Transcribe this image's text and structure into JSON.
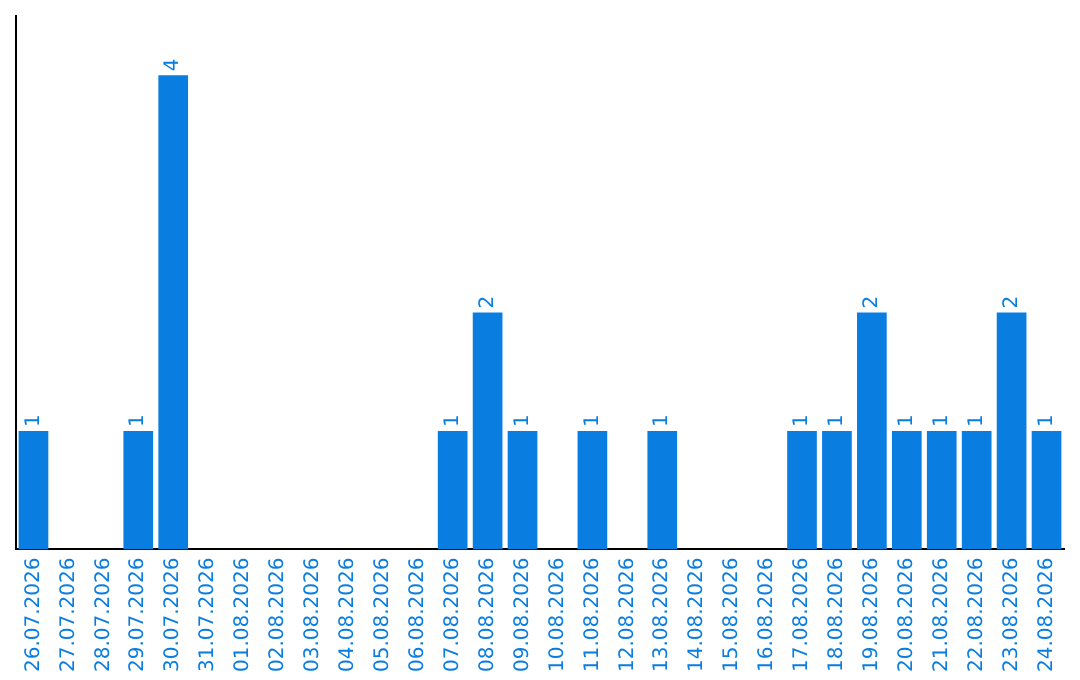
{
  "chart_data": {
    "type": "bar",
    "categories": [
      "26.07.2026",
      "27.07.2026",
      "28.07.2026",
      "29.07.2026",
      "30.07.2026",
      "31.07.2026",
      "01.08.2026",
      "02.08.2026",
      "03.08.2026",
      "04.08.2026",
      "05.08.2026",
      "06.08.2026",
      "07.08.2026",
      "08.08.2026",
      "09.08.2026",
      "10.08.2026",
      "11.08.2026",
      "12.08.2026",
      "13.08.2026",
      "14.08.2026",
      "15.08.2026",
      "16.08.2026",
      "17.08.2026",
      "18.08.2026",
      "19.08.2026",
      "20.08.2026",
      "21.08.2026",
      "22.08.2026",
      "23.08.2026",
      "24.08.2026"
    ],
    "values": [
      1,
      0,
      0,
      1,
      4,
      0,
      0,
      0,
      0,
      0,
      0,
      0,
      1,
      2,
      1,
      0,
      1,
      0,
      1,
      0,
      0,
      0,
      1,
      1,
      2,
      1,
      1,
      1,
      2,
      1
    ],
    "value_labels": [
      "1",
      null,
      null,
      "1",
      "4",
      null,
      null,
      null,
      null,
      null,
      null,
      null,
      "1",
      "2",
      "1",
      null,
      "1",
      null,
      "1",
      null,
      null,
      null,
      "1",
      "1",
      "2",
      "1",
      "1",
      "1",
      "2",
      "1"
    ],
    "color": "#0a7de0",
    "tick_labels": "x"
  }
}
